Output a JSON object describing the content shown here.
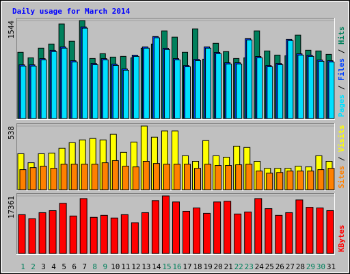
{
  "chart_data": [
    {
      "type": "bar",
      "title": "Daily usage for March 2014",
      "categories": [
        "1",
        "2",
        "3",
        "4",
        "5",
        "6",
        "7",
        "8",
        "9",
        "10",
        "11",
        "12",
        "13",
        "14",
        "15",
        "16",
        "17",
        "18",
        "19",
        "20",
        "21",
        "22",
        "23",
        "24",
        "25",
        "26",
        "27",
        "28",
        "29",
        "30",
        "31"
      ],
      "category_colors": [
        "#00805c",
        "#00805c",
        "#000000",
        "#000000",
        "#000000",
        "#000000",
        "#000000",
        "#00805c",
        "#00805c",
        "#000000",
        "#000000",
        "#000000",
        "#000000",
        "#000000",
        "#00805c",
        "#00805c",
        "#000000",
        "#000000",
        "#000000",
        "#000000",
        "#000000",
        "#00805c",
        "#00805c",
        "#000000",
        "#000000",
        "#000000",
        "#000000",
        "#000000",
        "#00805c",
        "#00805c",
        "#000000"
      ],
      "legend_separator": "/",
      "ylim": [
        0,
        1544
      ],
      "yticks": [
        1544
      ],
      "series": [
        {
          "name": "Hits",
          "color": "#00805c",
          "values": [
            1044,
            957,
            1109,
            1174,
            1490,
            1218,
            1544,
            946,
            1022,
            968,
            979,
            957,
            1109,
            1174,
            1381,
            1283,
            1044,
            1413,
            935,
            1185,
            1055,
            946,
            957,
            1381,
            1065,
            1000,
            989,
            1315,
            1076,
            1065,
            1011
          ]
        },
        {
          "name": "Files",
          "color": "#0040ff",
          "values": [
            846,
            846,
            944,
            1075,
            1129,
            911,
            1444,
            868,
            944,
            857,
            781,
            999,
            1129,
            1292,
            1107,
            944,
            835,
            933,
            1129,
            1042,
            879,
            879,
            1259,
            977,
            835,
            868,
            1248,
            1020,
            999,
            922,
            911
          ]
        },
        {
          "name": "Pages",
          "color": "#00e0ff",
          "values": [
            826,
            826,
            924,
            1055,
            1109,
            891,
            1424,
            848,
            924,
            837,
            761,
            979,
            1109,
            1272,
            1087,
            924,
            815,
            913,
            1109,
            1022,
            859,
            859,
            1239,
            957,
            815,
            848,
            1228,
            1000,
            979,
            902,
            891
          ]
        }
      ]
    },
    {
      "type": "bar",
      "legend_separator": "/",
      "ylim": [
        0,
        538
      ],
      "yticks": [
        538
      ],
      "series": [
        {
          "name": "Visits",
          "color": "#ffff00",
          "values": [
            304,
            228,
            304,
            310,
            351,
            398,
            421,
            433,
            421,
            468,
            316,
            403,
            538,
            444,
            497,
            497,
            287,
            240,
            415,
            287,
            275,
            368,
            357,
            240,
            181,
            181,
            181,
            199,
            193,
            287,
            240
          ]
        },
        {
          "name": "Sites",
          "color": "#ff8000",
          "values": [
            170,
            187,
            199,
            181,
            216,
            216,
            216,
            216,
            228,
            246,
            199,
            193,
            240,
            222,
            216,
            216,
            216,
            181,
            216,
            205,
            205,
            211,
            216,
            158,
            140,
            146,
            158,
            158,
            158,
            170,
            181
          ]
        }
      ]
    },
    {
      "type": "bar",
      "ylim": [
        0,
        17361
      ],
      "yticks": [
        17361
      ],
      "series": [
        {
          "name": "KBytes",
          "color": "#ff0000",
          "values": [
            11708,
            10497,
            12314,
            12920,
            15140,
            11304,
            16553,
            10901,
            11506,
            10699,
            11708,
            9286,
            12314,
            15948,
            17361,
            15544,
            12718,
            13727,
            12112,
            15544,
            15746,
            11910,
            12516,
            16553,
            13525,
            11506,
            12314,
            16149,
            13929,
            13727,
            12920
          ]
        }
      ]
    }
  ]
}
